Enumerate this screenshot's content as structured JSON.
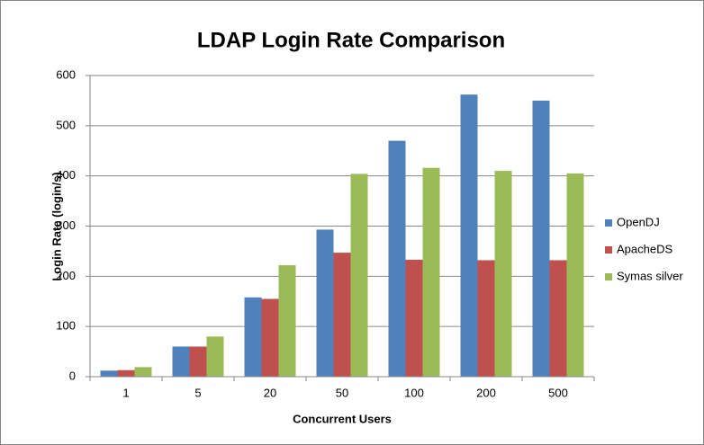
{
  "chart_data": {
    "type": "bar",
    "title": "LDAP Login Rate Comparison",
    "x_label": "Concurrent Users",
    "y_label": "Login Rate (login/s)",
    "categories": [
      "1",
      "5",
      "20",
      "50",
      "100",
      "200",
      "500"
    ],
    "series": [
      {
        "name": "OpenDJ",
        "color": "#4f81bd",
        "values": [
          12,
          60,
          158,
          293,
          470,
          562,
          550
        ]
      },
      {
        "name": "ApacheDS",
        "color": "#c0504d",
        "values": [
          13,
          60,
          155,
          247,
          233,
          232,
          232
        ]
      },
      {
        "name": "Symas silver",
        "color": "#9bbb59",
        "values": [
          19,
          80,
          222,
          404,
          416,
          410,
          405
        ]
      }
    ],
    "ylim": [
      0,
      600
    ],
    "yticks": [
      0,
      100,
      200,
      300,
      400,
      500,
      600
    ],
    "grid": true,
    "legend": "right"
  }
}
